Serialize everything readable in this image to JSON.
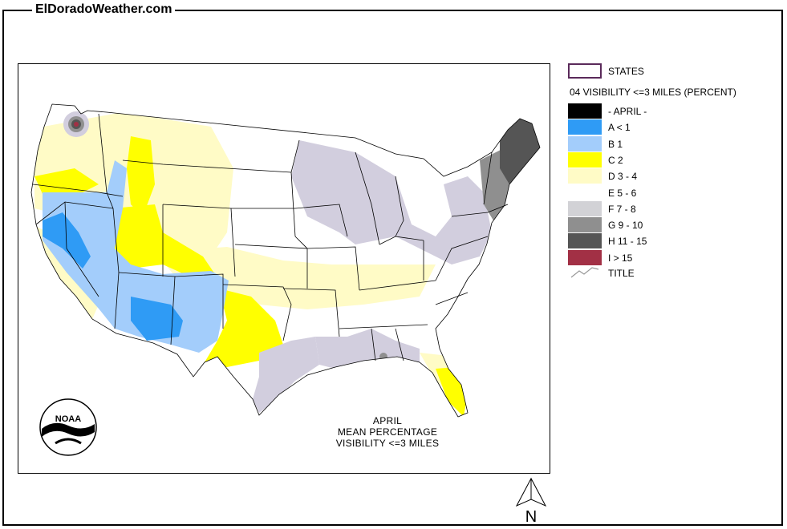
{
  "site_title": "ElDoradoWeather.com",
  "map": {
    "caption_lines": [
      "APRIL",
      "MEAN PERCENTAGE",
      "VISIBILITY <=3 MILES"
    ],
    "logo": "noaa-logo",
    "logo_text": "NOAA",
    "north_label": "N"
  },
  "legend": {
    "states_label": "STATES",
    "title": "04 VISIBILITY <=3 MILES (PERCENT)",
    "items": [
      {
        "label": "- APRIL -",
        "color": "#000000"
      },
      {
        "label": "A < 1",
        "color": "#2f9bf5"
      },
      {
        "label": "B 1",
        "color": "#a3cdfb"
      },
      {
        "label": "C 2",
        "color": "#ffff00"
      },
      {
        "label": "D 3 - 4",
        "color": "#fffbc6"
      },
      {
        "label": "E 5 - 6",
        "color": "#ffffff"
      },
      {
        "label": "F 7 - 8",
        "color": "#d2d2d6"
      },
      {
        "label": "G 9 - 10",
        "color": "#8f8f8f"
      },
      {
        "label": "H 11 - 15",
        "color": "#555555"
      },
      {
        "label": "I > 15",
        "color": "#a23045"
      }
    ],
    "title_line_label": "TITLE",
    "lavender_color": "#d2cede"
  }
}
